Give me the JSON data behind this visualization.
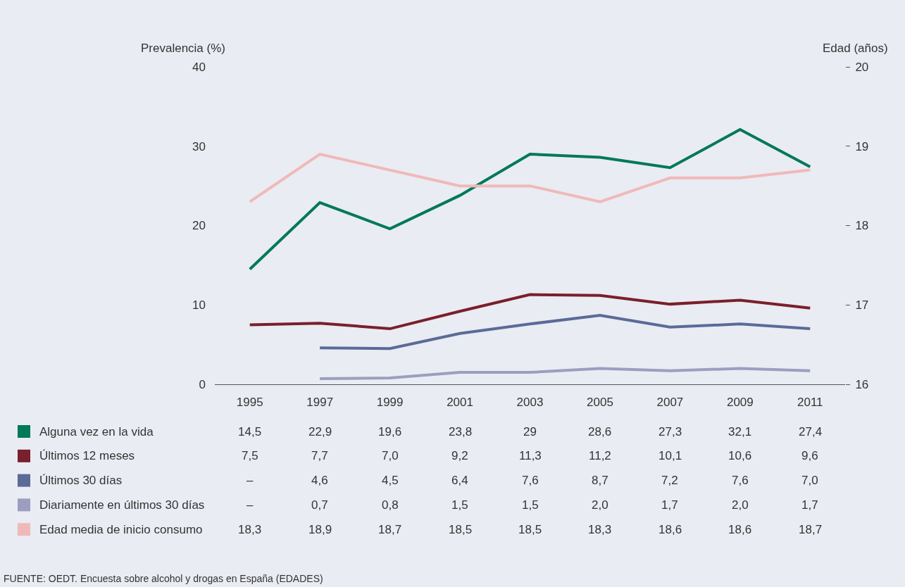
{
  "chart_data": {
    "type": "line",
    "categories": [
      "1995",
      "1997",
      "1999",
      "2001",
      "2003",
      "2005",
      "2007",
      "2009",
      "2011"
    ],
    "ylabel": "Prevalencia (%)",
    "y2label": "Edad (años)",
    "ylim": [
      0,
      40
    ],
    "yticks": [
      0,
      10,
      20,
      30,
      40
    ],
    "y2lim": [
      16,
      20
    ],
    "y2ticks": [
      16,
      17,
      18,
      19,
      20
    ],
    "legend": "bottom left",
    "grid": false,
    "marker": "none",
    "line_style": "solid",
    "series": [
      {
        "name": "Alguna vez en la vida",
        "color": "#00785a",
        "values": [
          14.5,
          22.9,
          19.6,
          23.8,
          29,
          28.6,
          27.3,
          32.1,
          27.4
        ],
        "value_labels": [
          "14,5",
          "22,9",
          "19,6",
          "23,8",
          "29",
          "28,6",
          "27,3",
          "32,1",
          "27,4"
        ]
      },
      {
        "name": "Últimos 12 meses",
        "color": "#7a1f2b",
        "values": [
          7.5,
          7.7,
          7.0,
          9.2,
          11.3,
          11.2,
          10.1,
          10.6,
          9.6
        ],
        "value_labels": [
          "7,5",
          "7,7",
          "7,0",
          "9,2",
          "11,3",
          "11,2",
          "10,1",
          "10,6",
          "9,6"
        ]
      },
      {
        "name": "Últimos 30 días",
        "color": "#5b6a98",
        "values": [
          null,
          4.6,
          4.5,
          6.4,
          7.6,
          8.7,
          7.2,
          7.6,
          7.0
        ],
        "value_labels": [
          "–",
          "4,6",
          "4,5",
          "6,4",
          "7,6",
          "8,7",
          "7,2",
          "7,6",
          "7,0"
        ]
      },
      {
        "name": "Diariamente en últimos 30 días",
        "color": "#9c9ec0",
        "values": [
          null,
          0.7,
          0.8,
          1.5,
          1.5,
          2.0,
          1.7,
          2.0,
          1.7
        ],
        "value_labels": [
          "–",
          "0,7",
          "0,8",
          "1,5",
          "1,5",
          "2,0",
          "1,7",
          "2,0",
          "1,7"
        ]
      },
      {
        "name": "Edad media de inicio consumo",
        "color": "#f0b9b9",
        "axis": "y2",
        "values": [
          18.3,
          18.9,
          18.7,
          18.5,
          18.5,
          18.3,
          18.6,
          18.6,
          18.7
        ],
        "value_labels": [
          "18,3",
          "18,9",
          "18,7",
          "18,5",
          "18,5",
          "18,3",
          "18,6",
          "18,6",
          "18,7"
        ]
      }
    ],
    "annotations": [
      "FUENTE: OEDT. Encuesta sobre alcohol y drogas en España (EDADES)"
    ]
  }
}
